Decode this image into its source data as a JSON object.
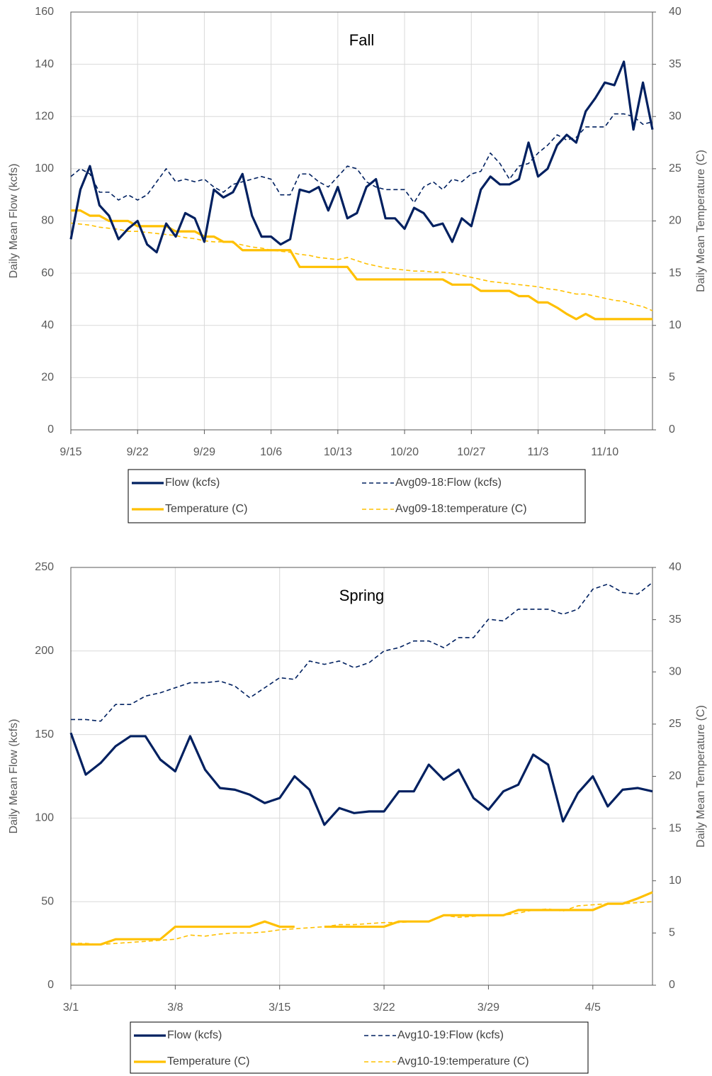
{
  "chart_data": [
    {
      "type": "line",
      "title": "Fall",
      "y_label": "Daily Mean Flow (kcfs)",
      "y2_label": "Daily Mean Temperature (C)",
      "categories": [
        "9/15",
        null,
        null,
        null,
        null,
        null,
        null,
        "9/22",
        null,
        null,
        null,
        null,
        null,
        null,
        "9/29",
        null,
        null,
        null,
        null,
        null,
        null,
        "10/6",
        null,
        null,
        null,
        null,
        null,
        null,
        "10/13",
        null,
        null,
        null,
        null,
        null,
        null,
        "10/20",
        null,
        null,
        null,
        null,
        null,
        null,
        "10/27",
        null,
        null,
        null,
        null,
        null,
        null,
        "11/3",
        null,
        null,
        null,
        null,
        null,
        null,
        "11/10",
        null,
        null,
        null,
        null,
        null
      ],
      "ylim": [
        0,
        160
      ],
      "yticks": [
        0,
        20,
        40,
        60,
        80,
        100,
        120,
        140,
        160
      ],
      "y2lim": [
        0,
        40
      ],
      "y2ticks": [
        0,
        5,
        10,
        15,
        20,
        25,
        30,
        35,
        40
      ],
      "grid": true,
      "series": [
        {
          "name": "Flow (kcfs)",
          "color": "#002060",
          "style": "solid",
          "values": [
            73,
            92,
            101,
            86,
            82,
            73,
            77,
            80,
            71,
            68,
            79,
            74,
            83,
            81,
            72,
            92,
            89,
            91,
            98,
            82,
            74,
            74,
            71,
            73,
            92,
            91,
            93,
            84,
            93,
            81,
            83,
            93,
            96,
            81,
            81,
            77,
            85,
            83,
            78,
            79,
            72,
            81,
            78,
            92,
            97,
            94,
            94,
            96,
            110,
            97,
            100,
            109,
            113,
            110,
            122,
            127,
            133,
            132,
            141,
            115,
            133,
            115
          ]
        },
        {
          "name": "Avg09-18:Flow (kcfs)",
          "color": "#002060",
          "style": "dashed",
          "values": [
            97,
            100,
            98,
            91,
            91,
            88,
            90,
            88,
            90,
            95,
            100,
            95,
            96,
            95,
            96,
            93,
            91,
            94,
            95,
            96,
            97,
            96,
            90,
            90,
            98,
            98,
            95,
            93,
            97,
            101,
            100,
            95,
            93,
            92,
            92,
            92,
            87,
            93,
            95,
            92,
            96,
            95,
            98,
            99,
            106,
            102,
            96,
            101,
            102,
            106,
            109,
            113,
            111,
            112,
            116,
            116,
            116,
            121,
            121,
            120,
            117,
            118
          ]
        },
        {
          "name": "Temperature (C)",
          "color": "#ffc000",
          "style": "solid",
          "axis": "y2",
          "values": [
            21,
            21,
            20.5,
            20.5,
            20,
            20,
            20,
            19.5,
            19.5,
            19.5,
            19.5,
            19,
            19,
            19,
            18.5,
            18.5,
            18,
            18,
            17.2,
            17.2,
            17.2,
            17.2,
            17.2,
            17.2,
            15.6,
            15.6,
            15.6,
            15.6,
            15.6,
            15.6,
            14.4,
            14.4,
            14.4,
            14.4,
            14.4,
            14.4,
            14.4,
            14.4,
            14.4,
            14.4,
            13.9,
            13.9,
            13.9,
            13.3,
            13.3,
            13.3,
            13.3,
            12.8,
            12.8,
            12.2,
            12.2,
            11.7,
            11.1,
            10.6,
            11.1,
            10.6,
            10.6,
            10.6,
            10.6,
            10.6,
            10.6,
            10.6
          ]
        },
        {
          "name": "Avg09-18:temperature (C)",
          "color": "#ffc000",
          "style": "dashed",
          "axis": "y2",
          "values": [
            19.8,
            19.7,
            19.6,
            19.4,
            19.3,
            19.2,
            19.0,
            19.0,
            18.9,
            18.8,
            18.7,
            18.6,
            18.4,
            18.3,
            18.1,
            18.0,
            18.0,
            17.9,
            17.7,
            17.5,
            17.4,
            17.2,
            17.1,
            17.0,
            16.8,
            16.7,
            16.5,
            16.4,
            16.3,
            16.5,
            16.2,
            15.9,
            15.7,
            15.5,
            15.4,
            15.3,
            15.2,
            15.2,
            15.1,
            15.1,
            15.0,
            14.8,
            14.6,
            14.4,
            14.2,
            14.1,
            14.0,
            13.9,
            13.8,
            13.7,
            13.5,
            13.4,
            13.2,
            13.0,
            13.0,
            12.8,
            12.6,
            12.4,
            12.3,
            12.0,
            11.8,
            11.4
          ]
        }
      ]
    },
    {
      "type": "line",
      "title": "Spring",
      "y_label": "Daily Mean Flow (kcfs)",
      "y2_label": "Daily Mean Temperature (C)",
      "categories": [
        "3/1",
        null,
        null,
        null,
        null,
        null,
        null,
        "3/8",
        null,
        null,
        null,
        null,
        null,
        null,
        "3/15",
        null,
        null,
        null,
        null,
        null,
        null,
        "3/22",
        null,
        null,
        null,
        null,
        null,
        null,
        "3/29",
        null,
        null,
        null,
        null,
        null,
        null,
        "4/5",
        null,
        null,
        null,
        null
      ],
      "ylim": [
        0,
        250
      ],
      "yticks": [
        0,
        50,
        100,
        150,
        200,
        250
      ],
      "y2lim": [
        0,
        40
      ],
      "y2ticks": [
        0,
        5,
        10,
        15,
        20,
        25,
        30,
        35,
        40
      ],
      "grid": true,
      "series": [
        {
          "name": "Flow (kcfs)",
          "color": "#002060",
          "style": "solid",
          "values": [
            151,
            126,
            133,
            143,
            149,
            149,
            135,
            128,
            149,
            129,
            118,
            117,
            114,
            109,
            112,
            125,
            117,
            96,
            106,
            103,
            104,
            104,
            116,
            116,
            132,
            123,
            129,
            112,
            105,
            116,
            120,
            138,
            132,
            98,
            115,
            125,
            107,
            117,
            118,
            116
          ]
        },
        {
          "name": "Avg10-19:Flow (kcfs)",
          "color": "#002060",
          "style": "dashed",
          "values": [
            159,
            159,
            158,
            168,
            168,
            173,
            175,
            178,
            181,
            181,
            182,
            179,
            172,
            178,
            184,
            183,
            194,
            192,
            194,
            190,
            193,
            200,
            202,
            206,
            206,
            202,
            208,
            208,
            219,
            218,
            225,
            225,
            225,
            222,
            225,
            237,
            240,
            235,
            234,
            241
          ]
        },
        {
          "name": "Temperature (C)",
          "color": "#ffc000",
          "style": "solid",
          "axis": "y2",
          "values": [
            3.9,
            3.9,
            3.9,
            4.4,
            4.4,
            4.4,
            4.4,
            5.6,
            5.6,
            5.6,
            5.6,
            5.6,
            5.6,
            6.1,
            5.6,
            5.6,
            null,
            5.6,
            5.6,
            5.6,
            5.6,
            5.6,
            6.1,
            6.1,
            6.1,
            6.7,
            6.7,
            6.7,
            6.7,
            6.7,
            7.2,
            7.2,
            7.2,
            7.2,
            7.2,
            7.2,
            7.8,
            7.8,
            8.3,
            8.9
          ]
        },
        {
          "name": "Avg10-19:temperature (C)",
          "color": "#ffc000",
          "style": "dashed",
          "axis": "y2",
          "values": [
            4.0,
            4.0,
            3.9,
            4.0,
            4.1,
            4.2,
            4.3,
            4.4,
            4.8,
            4.7,
            4.9,
            5.0,
            5.0,
            5.1,
            5.3,
            5.4,
            5.5,
            5.6,
            5.8,
            5.8,
            5.9,
            6.0,
            6.0,
            6.1,
            6.1,
            6.7,
            6.5,
            6.6,
            6.7,
            6.7,
            6.9,
            7.2,
            7.3,
            7.1,
            7.6,
            7.7,
            7.8,
            7.8,
            7.9,
            8.0
          ]
        }
      ]
    }
  ]
}
